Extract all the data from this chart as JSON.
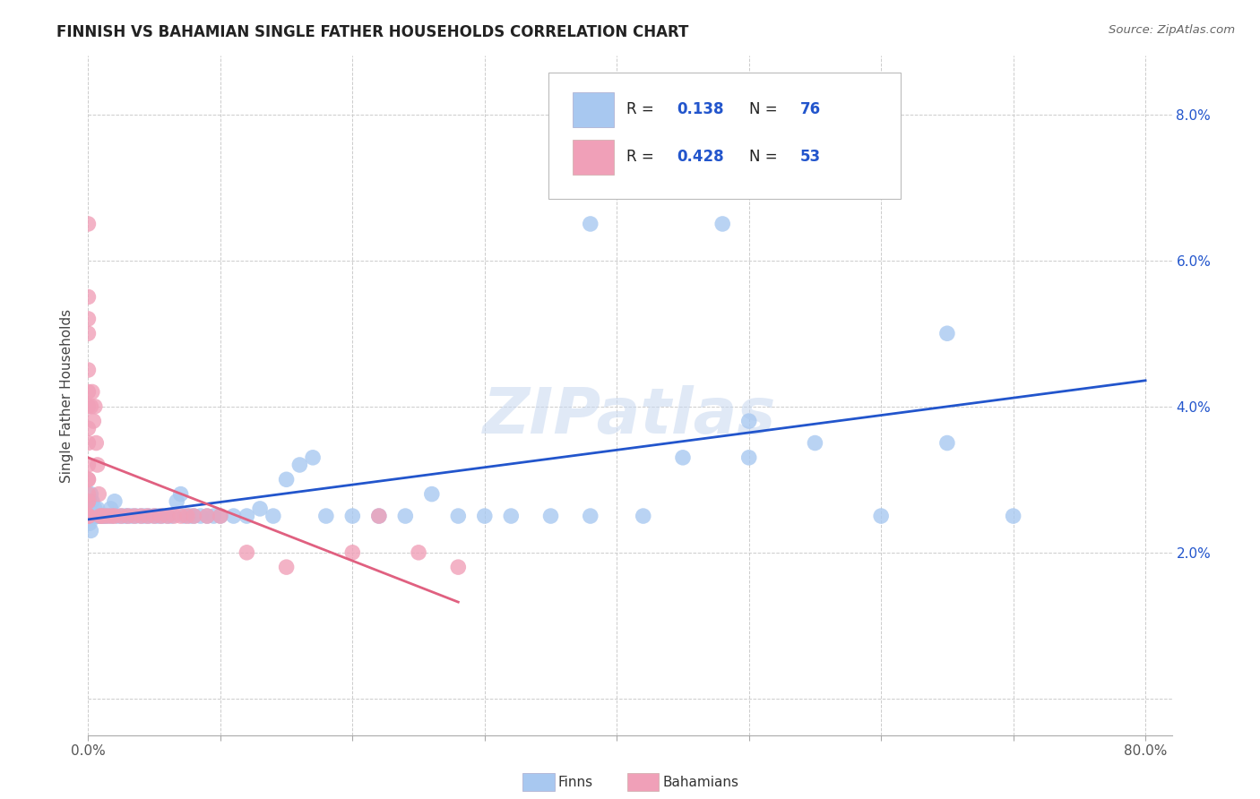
{
  "title": "FINNISH VS BAHAMIAN SINGLE FATHER HOUSEHOLDS CORRELATION CHART",
  "source": "Source: ZipAtlas.com",
  "ylabel": "Single Father Households",
  "finn_color": "#a8c8f0",
  "baha_color": "#f0a0b8",
  "finn_line_color": "#2255cc",
  "baha_line_color": "#e06080",
  "watermark": "ZIPatlas",
  "background_color": "#ffffff",
  "xlim": [
    0.0,
    0.82
  ],
  "ylim": [
    -0.005,
    0.088
  ],
  "legend_label1": "Finns",
  "legend_label2": "Bahamians",
  "finns_x": [
    0.0,
    0.0,
    0.001,
    0.001,
    0.002,
    0.002,
    0.003,
    0.003,
    0.004,
    0.005,
    0.005,
    0.006,
    0.007,
    0.007,
    0.008,
    0.009,
    0.01,
    0.011,
    0.012,
    0.013,
    0.015,
    0.017,
    0.018,
    0.02,
    0.022,
    0.025,
    0.028,
    0.03,
    0.033,
    0.036,
    0.04,
    0.043,
    0.046,
    0.05,
    0.053,
    0.056,
    0.06,
    0.063,
    0.067,
    0.07,
    0.073,
    0.077,
    0.08,
    0.085,
    0.09,
    0.095,
    0.1,
    0.11,
    0.12,
    0.13,
    0.14,
    0.15,
    0.16,
    0.17,
    0.18,
    0.2,
    0.22,
    0.24,
    0.26,
    0.28,
    0.3,
    0.32,
    0.35,
    0.38,
    0.42,
    0.45,
    0.5,
    0.55,
    0.6,
    0.65,
    0.38,
    0.42,
    0.48,
    0.5,
    0.65,
    0.7
  ],
  "finns_y": [
    0.025,
    0.026,
    0.024,
    0.027,
    0.023,
    0.028,
    0.025,
    0.027,
    0.025,
    0.025,
    0.026,
    0.025,
    0.025,
    0.026,
    0.025,
    0.025,
    0.025,
    0.025,
    0.025,
    0.025,
    0.025,
    0.026,
    0.025,
    0.027,
    0.025,
    0.025,
    0.025,
    0.025,
    0.025,
    0.025,
    0.025,
    0.025,
    0.025,
    0.025,
    0.025,
    0.025,
    0.025,
    0.025,
    0.027,
    0.028,
    0.025,
    0.025,
    0.025,
    0.025,
    0.025,
    0.025,
    0.025,
    0.025,
    0.025,
    0.026,
    0.025,
    0.03,
    0.032,
    0.033,
    0.025,
    0.025,
    0.025,
    0.025,
    0.028,
    0.025,
    0.025,
    0.025,
    0.025,
    0.025,
    0.025,
    0.033,
    0.033,
    0.035,
    0.025,
    0.035,
    0.065,
    0.07,
    0.065,
    0.038,
    0.05,
    0.025
  ],
  "bahamas_x": [
    0.0,
    0.0,
    0.0,
    0.0,
    0.0,
    0.0,
    0.0,
    0.0,
    0.0,
    0.0,
    0.0,
    0.0,
    0.0,
    0.0,
    0.0,
    0.0,
    0.0,
    0.0,
    0.0,
    0.0,
    0.002,
    0.003,
    0.004,
    0.005,
    0.006,
    0.007,
    0.008,
    0.009,
    0.01,
    0.012,
    0.015,
    0.018,
    0.02,
    0.025,
    0.03,
    0.035,
    0.04,
    0.045,
    0.05,
    0.055,
    0.06,
    0.065,
    0.07,
    0.075,
    0.08,
    0.09,
    0.1,
    0.12,
    0.15,
    0.2,
    0.22,
    0.25,
    0.28
  ],
  "bahamas_y": [
    0.025,
    0.025,
    0.025,
    0.025,
    0.025,
    0.027,
    0.027,
    0.028,
    0.03,
    0.03,
    0.032,
    0.035,
    0.037,
    0.04,
    0.042,
    0.045,
    0.05,
    0.052,
    0.055,
    0.065,
    0.04,
    0.042,
    0.038,
    0.04,
    0.035,
    0.032,
    0.028,
    0.025,
    0.025,
    0.025,
    0.025,
    0.025,
    0.025,
    0.025,
    0.025,
    0.025,
    0.025,
    0.025,
    0.025,
    0.025,
    0.025,
    0.025,
    0.025,
    0.025,
    0.025,
    0.025,
    0.025,
    0.02,
    0.018,
    0.02,
    0.025,
    0.02,
    0.018
  ],
  "finn_R": 0.138,
  "finn_N": 76,
  "baha_R": 0.428,
  "baha_N": 53
}
